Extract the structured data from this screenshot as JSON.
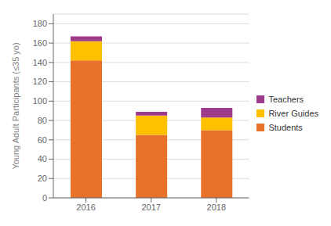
{
  "chart_data": {
    "type": "bar",
    "stacked": true,
    "categories": [
      "2016",
      "2017",
      "2018"
    ],
    "series": [
      {
        "name": "Students",
        "color": "#E8722A",
        "values": [
          142,
          65,
          70
        ]
      },
      {
        "name": "River Guides",
        "color": "#FFC000",
        "values": [
          20,
          20,
          13
        ]
      },
      {
        "name": "Teachers",
        "color": "#9E3B8C",
        "values": [
          5,
          4,
          10
        ]
      }
    ],
    "ylabel": "Young Adult Participants (≤35 yo)",
    "ylim": [
      0,
      190
    ],
    "yticks": [
      0,
      20,
      40,
      60,
      80,
      100,
      120,
      140,
      160,
      180
    ],
    "grid": true,
    "legend": "right"
  }
}
